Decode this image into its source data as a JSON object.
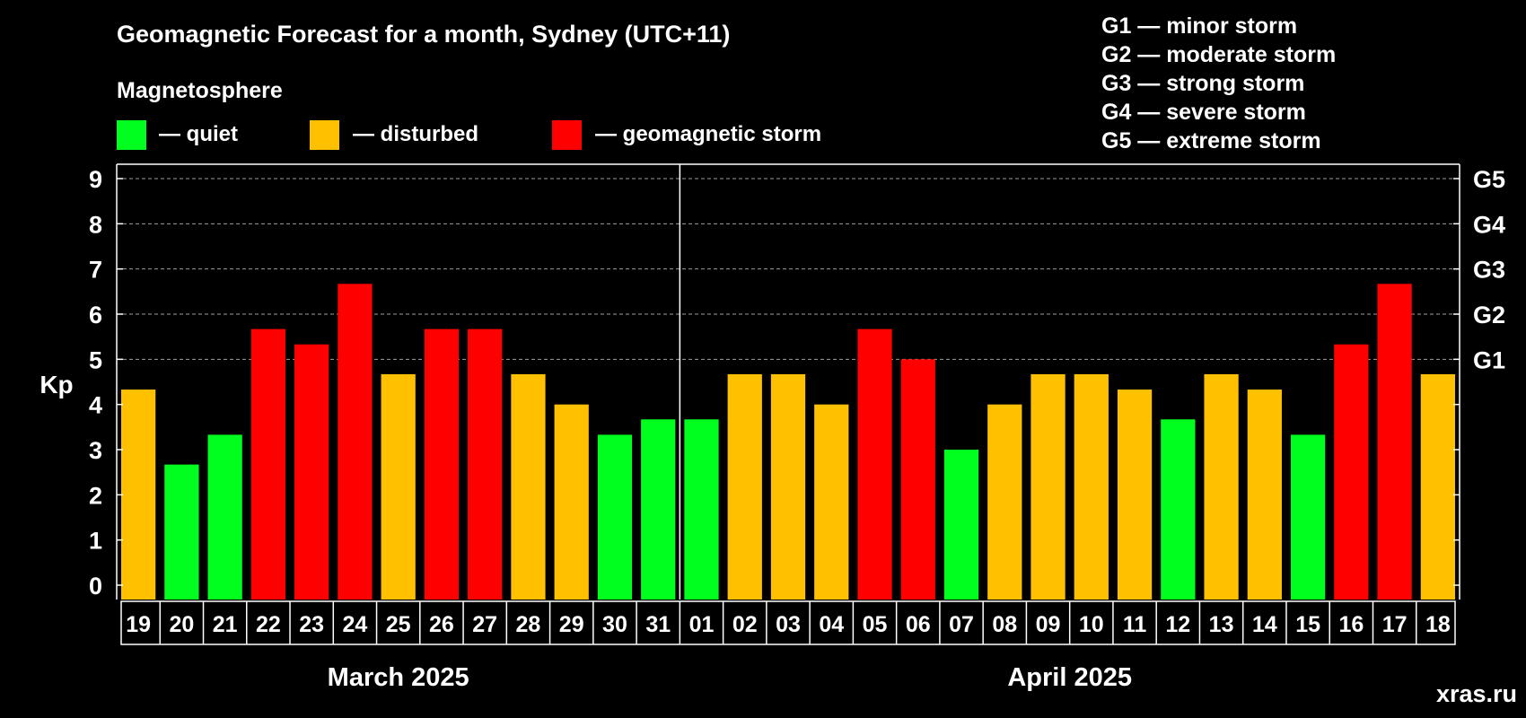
{
  "colors": {
    "background": "#000000",
    "quiet": "#00ff1e",
    "disturbed": "#ffc000",
    "storm": "#ff0000",
    "text": "#ffffff",
    "grid": "#9e9e9e",
    "watermark": "#7f7f7f"
  },
  "legend": {
    "section_title": "Magnetosphere",
    "quiet_label": "— quiet",
    "disturbed_label": "— disturbed",
    "storm_label": "— geomagnetic storm"
  },
  "storm_scale_legend": [
    "G1 — minor storm",
    "G2 — moderate storm",
    "G3 — strong storm",
    "G4 — severe storm",
    "G5 — extreme storm"
  ],
  "watermark": "xras.ru",
  "chart_data": {
    "type": "bar",
    "title": "Geomagnetic Forecast for a month, Sydney (UTC+11)",
    "ylabel": "Kp",
    "ylim": [
      0,
      9
    ],
    "yticks": [
      "0",
      "1",
      "2",
      "3",
      "4",
      "5",
      "6",
      "7",
      "8",
      "9"
    ],
    "grid_levels": [
      5,
      6,
      7,
      8,
      9
    ],
    "right_axis": [
      {
        "kp": 5,
        "label": "G1"
      },
      {
        "kp": 6,
        "label": "G2"
      },
      {
        "kp": 7,
        "label": "G3"
      },
      {
        "kp": 8,
        "label": "G4"
      },
      {
        "kp": 9,
        "label": "G5"
      }
    ],
    "categories": [
      "19",
      "20",
      "21",
      "22",
      "23",
      "24",
      "25",
      "26",
      "27",
      "28",
      "29",
      "30",
      "31",
      "01",
      "02",
      "03",
      "04",
      "05",
      "06",
      "07",
      "08",
      "09",
      "10",
      "11",
      "12",
      "13",
      "14",
      "15",
      "16",
      "17",
      "18"
    ],
    "values": [
      4.33,
      2.67,
      3.33,
      5.67,
      5.33,
      6.67,
      4.67,
      5.67,
      5.67,
      4.67,
      4.0,
      3.33,
      3.67,
      3.67,
      4.67,
      4.67,
      4.0,
      5.67,
      5.0,
      3.0,
      4.0,
      4.67,
      4.67,
      4.33,
      3.67,
      4.67,
      4.33,
      3.33,
      5.33,
      6.67,
      4.67
    ],
    "levels": [
      "disturbed",
      "quiet",
      "quiet",
      "storm",
      "storm",
      "storm",
      "disturbed",
      "storm",
      "storm",
      "disturbed",
      "disturbed",
      "quiet",
      "quiet",
      "quiet",
      "disturbed",
      "disturbed",
      "disturbed",
      "storm",
      "storm",
      "quiet",
      "disturbed",
      "disturbed",
      "disturbed",
      "disturbed",
      "quiet",
      "disturbed",
      "disturbed",
      "quiet",
      "storm",
      "storm",
      "disturbed"
    ],
    "months": [
      {
        "label": "March 2025",
        "days": 13
      },
      {
        "label": "April 2025",
        "days": 18
      }
    ]
  }
}
